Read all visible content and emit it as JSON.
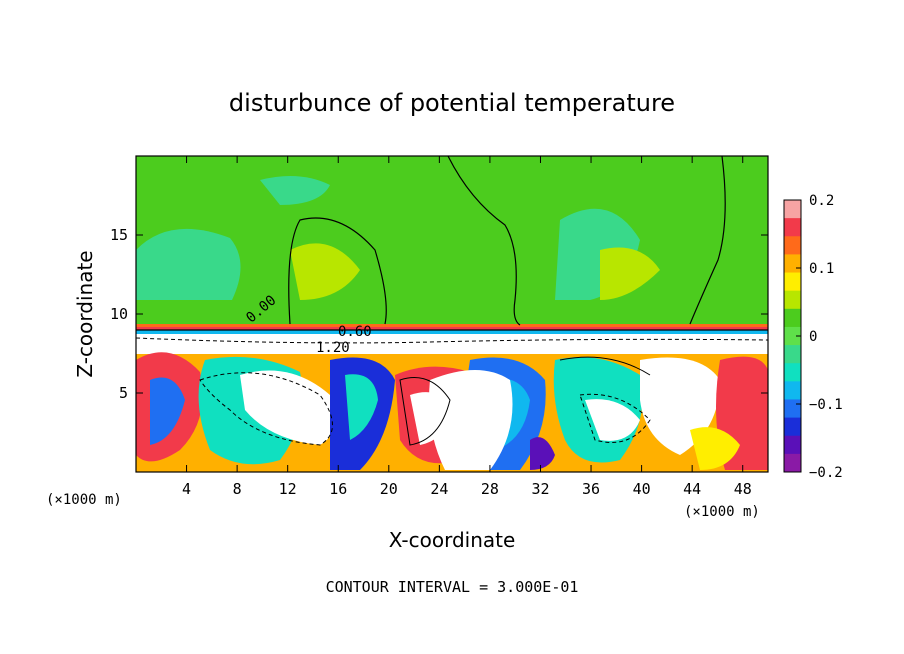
{
  "chart_data": {
    "type": "heatmap",
    "title": "disturbunce of potential temperature",
    "xlabel": "X-coordinate",
    "ylabel": "Z-coordinate",
    "x_unit": "(×1000 m)",
    "y_unit": "(×1000 m)",
    "xlim": [
      0,
      50
    ],
    "ylim": [
      0,
      20
    ],
    "x_ticks": [
      4,
      8,
      12,
      16,
      20,
      24,
      28,
      32,
      36,
      40,
      44,
      48
    ],
    "y_ticks": [
      5,
      10,
      15
    ],
    "colorbar": {
      "range": [
        -0.2,
        0.2
      ],
      "tick_labels": [
        "0.2",
        "0.1",
        "0",
        "−0.1",
        "−0.2"
      ],
      "tick_values": [
        0.2,
        0.1,
        0,
        -0.1,
        -0.2
      ],
      "colors": [
        "#f7a3a3",
        "#f23a4a",
        "#ff6a1a",
        "#ffb000",
        "#ffee00",
        "#b8e600",
        "#4ccc1e",
        "#5fe04a",
        "#39d98a",
        "#10e0c0",
        "#10b8ef",
        "#1f6ff2",
        "#1a2ed9",
        "#5a10b8",
        "#8a1aa6"
      ]
    },
    "contour_labels": [
      "0.00",
      "0.60",
      "1.20"
    ],
    "grid": false,
    "footer": "CONTOUR INTERVAL = 3.000E-01"
  }
}
